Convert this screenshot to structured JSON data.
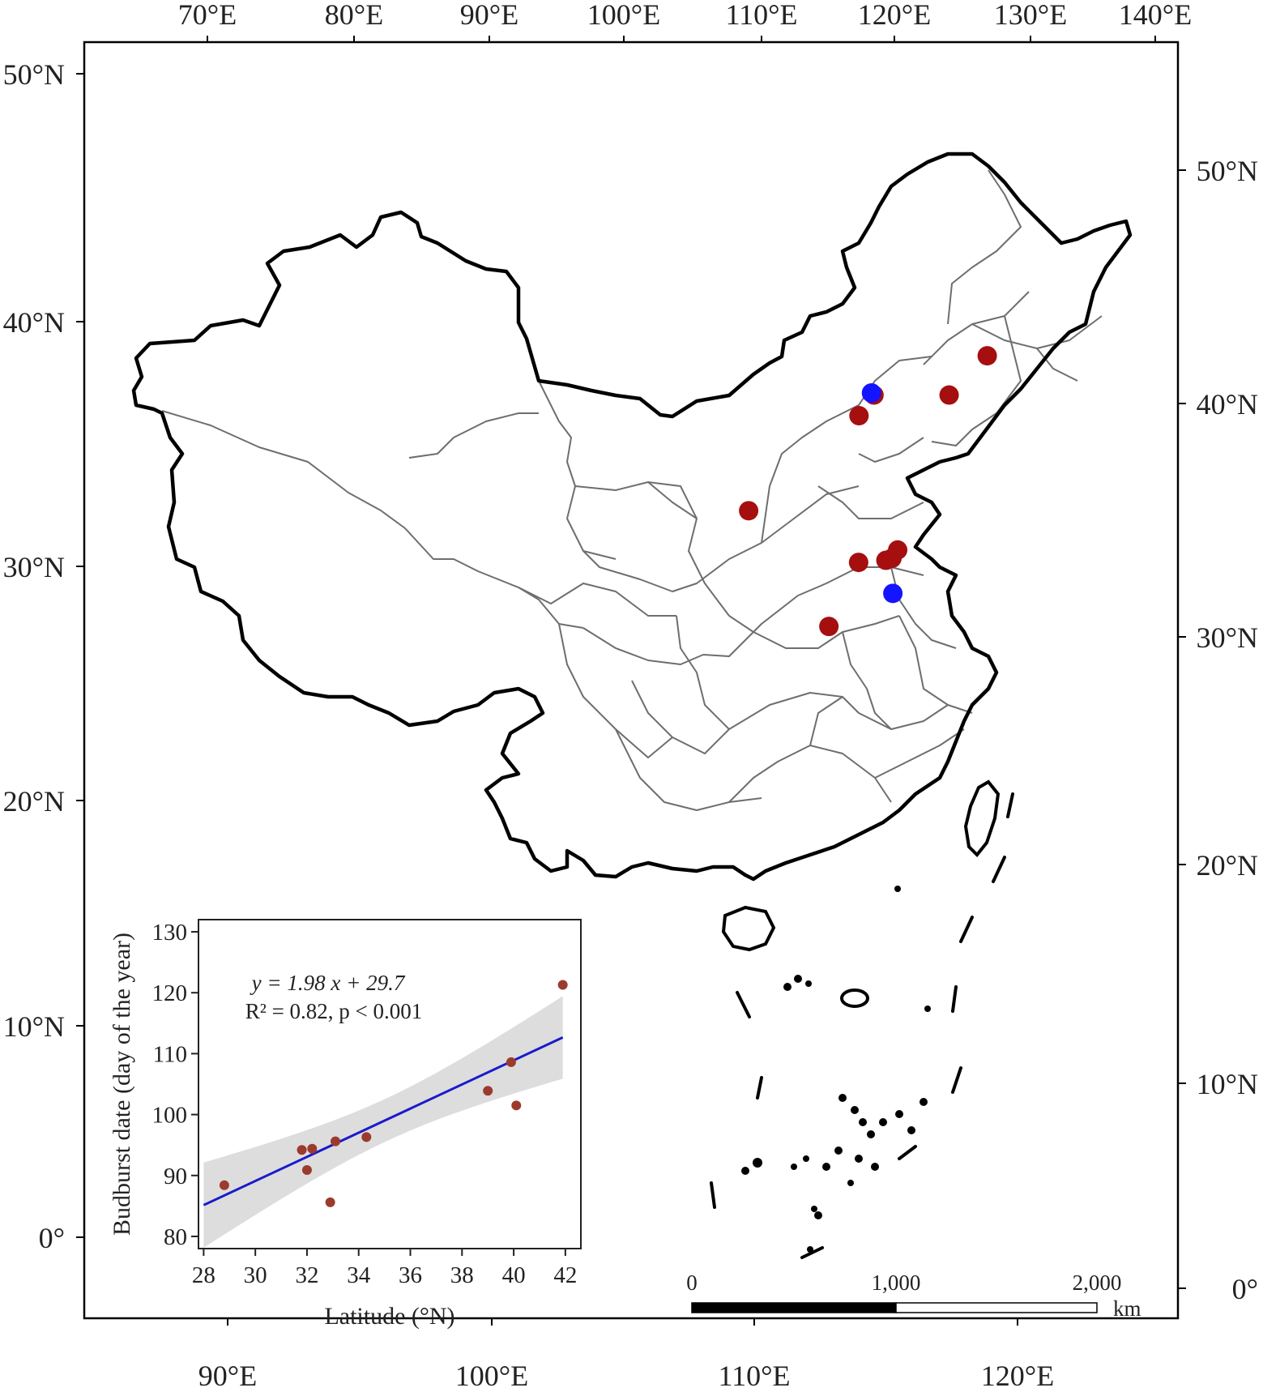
{
  "map": {
    "top_lon_labels": [
      "70°E",
      "80°E",
      "90°E",
      "100°E",
      "110°E",
      "120°E",
      "130°E",
      "140°E"
    ],
    "bottom_lon_labels": [
      "90°E",
      "100°E",
      "110°E",
      "120°E"
    ],
    "left_lat_labels": [
      "50°N",
      "40°N",
      "30°N",
      "20°N",
      "10°N",
      "0°"
    ],
    "right_lat_labels": [
      "50°N",
      "40°N",
      "30°N",
      "20°N",
      "10°N",
      "0°"
    ],
    "colors": {
      "site_red": "#a50f0f",
      "site_blue": "#1414ff",
      "border": "#000000",
      "province": "#6e6e6e"
    },
    "sites_red": [
      {
        "lon": 123.8,
        "lat": 41.8
      },
      {
        "lon": 116.3,
        "lat": 39.9
      },
      {
        "lon": 121.6,
        "lat": 39.9
      },
      {
        "lon": 115.5,
        "lat": 38.9
      },
      {
        "lon": 108.9,
        "lat": 34.3
      },
      {
        "lon": 119.9,
        "lat": 32.4
      },
      {
        "lon": 119.2,
        "lat": 31.9
      },
      {
        "lon": 119.6,
        "lat": 32.0
      },
      {
        "lon": 117.3,
        "lat": 31.8
      },
      {
        "lon": 116.0,
        "lat": 28.7
      }
    ],
    "sites_blue": [
      {
        "lon": 116.1,
        "lat": 40.0
      },
      {
        "lon": 120.1,
        "lat": 30.3
      }
    ],
    "scale_bar": {
      "labels": [
        "0",
        "1,000",
        "2,000"
      ],
      "unit": "km"
    }
  },
  "inset": {
    "chart_data": {
      "type": "scatter",
      "xlabel": "Latitude (°N)",
      "ylabel": "Budburst date (day of the year)",
      "xlim": [
        27.8,
        42.6
      ],
      "ylim": [
        78,
        132
      ],
      "xticks": [
        "28",
        "30",
        "32",
        "34",
        "36",
        "38",
        "40",
        "42"
      ],
      "yticks": [
        "80",
        "90",
        "100",
        "110",
        "120",
        "130"
      ],
      "points": [
        {
          "x": 28.8,
          "y": 88.4
        },
        {
          "x": 31.8,
          "y": 94.2
        },
        {
          "x": 32.0,
          "y": 90.9
        },
        {
          "x": 32.2,
          "y": 94.4
        },
        {
          "x": 32.9,
          "y": 85.6
        },
        {
          "x": 33.1,
          "y": 95.6
        },
        {
          "x": 34.3,
          "y": 96.3
        },
        {
          "x": 39.0,
          "y": 103.9
        },
        {
          "x": 39.9,
          "y": 108.6
        },
        {
          "x": 40.1,
          "y": 101.5
        },
        {
          "x": 41.9,
          "y": 121.3
        }
      ],
      "fit": {
        "slope": 1.98,
        "intercept": 29.7,
        "color": "#1a1acc"
      },
      "equation": "y = 1.98 x + 29.7",
      "stats": "R² = 0.82, p < 0.001",
      "point_color": "#9b3b2e",
      "band_color": "#dddddd"
    }
  }
}
